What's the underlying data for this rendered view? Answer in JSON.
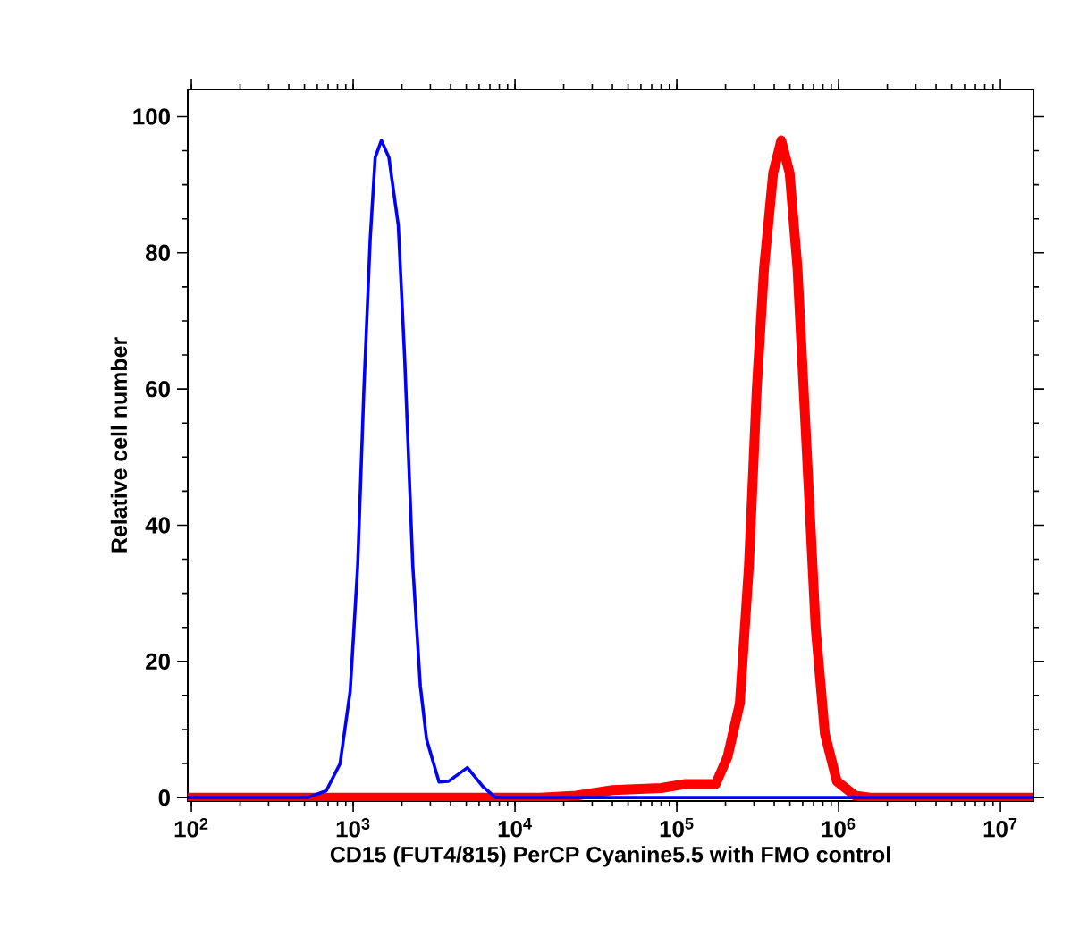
{
  "chart_data": {
    "type": "line",
    "xlabel": "CD15 (FUT4/815) PerCP Cyanine5.5 with FMO control",
    "ylabel": "Relative cell number",
    "log": "x",
    "grid": false,
    "marker": "none",
    "line_style": "solid",
    "xlim": [
      95,
      16000000
    ],
    "ylim": [
      -0.5,
      104
    ],
    "xticks": [
      {
        "value": 100,
        "label": "10$^{2}$"
      },
      {
        "value": 1000,
        "label": "10$^{3}$"
      },
      {
        "value": 10000,
        "label": "10$^{4}$"
      },
      {
        "value": 100000,
        "label": "10$^{5}$"
      },
      {
        "value": 1000000,
        "label": "10$^{6}$"
      },
      {
        "value": 10000000,
        "label": "10$^{7}$"
      }
    ],
    "yticks": [
      0,
      20,
      40,
      60,
      80,
      100
    ],
    "series": [
      {
        "color": "#ff0000",
        "x": [
          95,
          14260,
          23900,
          40100,
          80000,
          113000,
          174000,
          206000,
          245000,
          279000,
          312000,
          346000,
          394000,
          442000,
          498000,
          557000,
          634000,
          721000,
          822000,
          975000,
          1262000,
          1570000,
          16000000
        ],
        "values": [
          0,
          0,
          0.3,
          1.1,
          1.4,
          2,
          2,
          6,
          13.8,
          34,
          60,
          77.7,
          91.7,
          96.5,
          91.7,
          77.7,
          51.4,
          25,
          9.4,
          2.4,
          0.3,
          0,
          0
        ]
      },
      {
        "color": "#0000ff",
        "x": [
          95,
          522,
          682,
          830,
          958,
          1066,
          1165,
          1274,
          1368,
          1494,
          1663,
          1901,
          2080,
          2336,
          2600,
          2840,
          3394,
          3890,
          5080,
          6340,
          7590,
          16000000
        ],
        "values": [
          0,
          0,
          1,
          5,
          15.6,
          34,
          60,
          82,
          94,
          96.5,
          94,
          84,
          64.6,
          34,
          16.4,
          8.6,
          2.3,
          2.4,
          4.4,
          1.6,
          0,
          0
        ]
      }
    ]
  }
}
